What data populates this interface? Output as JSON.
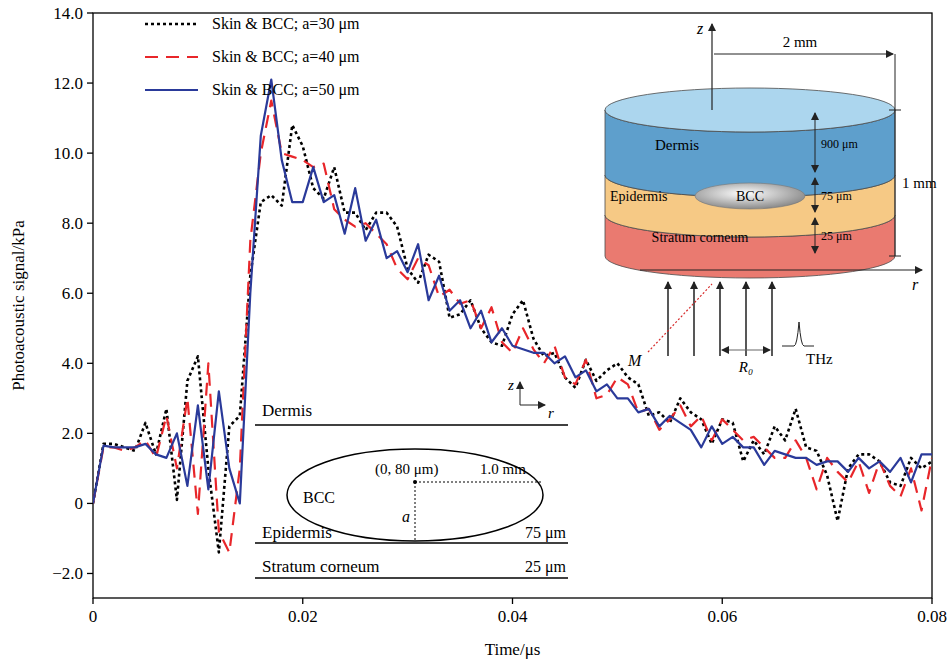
{
  "chart_data": {
    "type": "line",
    "x_label": "Time/μs",
    "y_label": "Photoacoustic signal/kPa",
    "xlim": [
      0,
      0.08
    ],
    "ylim": [
      -2.7,
      14
    ],
    "xticks": [
      0,
      0.02,
      0.04,
      0.06,
      0.08
    ],
    "yticks": [
      {
        "value": -2,
        "label": "−2.0"
      },
      0,
      {
        "value": 2,
        "label": "2.0"
      },
      {
        "value": 4,
        "label": "4.0"
      },
      {
        "value": 6,
        "label": "6.0"
      },
      {
        "value": 8,
        "label": "8.0"
      },
      {
        "value": 10,
        "label": "10.0"
      },
      {
        "value": 12,
        "label": "12.0"
      },
      {
        "value": 14,
        "label": "14.0"
      }
    ],
    "grid": false,
    "legend": "upper left",
    "x": [
      0,
      0.001,
      0.002,
      0.003,
      0.004,
      0.005,
      0.006,
      0.007,
      0.008,
      0.009,
      0.01,
      0.011,
      0.012,
      0.013,
      0.014,
      0.015,
      0.016,
      0.017,
      0.018,
      0.019,
      0.02,
      0.021,
      0.022,
      0.023,
      0.024,
      0.025,
      0.026,
      0.027,
      0.028,
      0.029,
      0.03,
      0.031,
      0.032,
      0.033,
      0.034,
      0.035,
      0.036,
      0.037,
      0.038,
      0.039,
      0.04,
      0.041,
      0.042,
      0.043,
      0.044,
      0.045,
      0.046,
      0.047,
      0.048,
      0.049,
      0.05,
      0.051,
      0.052,
      0.053,
      0.054,
      0.055,
      0.056,
      0.057,
      0.058,
      0.059,
      0.06,
      0.061,
      0.062,
      0.063,
      0.064,
      0.065,
      0.066,
      0.067,
      0.068,
      0.069,
      0.07,
      0.071,
      0.072,
      0.073,
      0.074,
      0.075,
      0.076,
      0.077,
      0.078,
      0.079,
      0.08
    ],
    "series": [
      {
        "name": "Skin & BCC; a=30 μm",
        "color": "#000000",
        "line_style": "dotted",
        "values": [
          0,
          1.7,
          1.7,
          1.6,
          1.5,
          2.3,
          1.4,
          2.7,
          0.1,
          3.5,
          4.2,
          1.0,
          -1.4,
          2.2,
          2.5,
          6.5,
          8.6,
          8.8,
          8.5,
          10.8,
          10.2,
          9.0,
          8.7,
          9.6,
          8.3,
          8.3,
          7.8,
          8.3,
          8.3,
          7.9,
          6.7,
          6.3,
          7.1,
          6.9,
          5.3,
          5.4,
          5.8,
          5.0,
          4.6,
          4.5,
          5.4,
          5.8,
          4.7,
          4.2,
          4.3,
          3.6,
          3.3,
          4.1,
          3.5,
          3.8,
          4.0,
          3.6,
          3.4,
          2.5,
          2.6,
          2.3,
          3.0,
          2.6,
          2.4,
          1.7,
          2.4,
          2.3,
          1.2,
          1.8,
          1.4,
          2.2,
          1.8,
          2.7,
          1.6,
          1.5,
          0.8,
          -0.5,
          1.0,
          1.4,
          1.4,
          1.2,
          0.6,
          0.5,
          1.3,
          1.0,
          1.2
        ]
      },
      {
        "name": "Skin & BCC; a=40 μm",
        "color": "#e8262a",
        "line_style": "dashed",
        "values": [
          0,
          1.6,
          1.6,
          1.5,
          1.6,
          1.8,
          1.3,
          2.5,
          1.0,
          3.0,
          -0.3,
          4.0,
          -0.8,
          -1.4,
          1.0,
          7.5,
          10.0,
          11.5,
          10.0,
          9.9,
          9.8,
          9.6,
          9.7,
          8.4,
          8.1,
          7.9,
          8.0,
          7.7,
          7.4,
          6.7,
          6.4,
          7.0,
          6.8,
          5.9,
          6.1,
          5.7,
          5.8,
          5.0,
          5.6,
          4.6,
          4.3,
          5.0,
          4.4,
          4.0,
          4.5,
          3.6,
          3.4,
          4.1,
          3.0,
          3.1,
          3.6,
          3.4,
          2.6,
          2.7,
          2.1,
          2.4,
          2.8,
          2.2,
          2.5,
          1.8,
          2.4,
          2.1,
          1.8,
          1.9,
          1.6,
          1.3,
          1.3,
          1.8,
          1.3,
          0.4,
          1.3,
          0.9,
          0.6,
          1.2,
          0.3,
          1.2,
          0.5,
          0.2,
          1.0,
          -0.2,
          1.3
        ]
      },
      {
        "name": "Skin & BCC; a=50 μm",
        "color": "#2a3a9a",
        "line_style": "solid",
        "values": [
          0,
          1.65,
          1.6,
          1.6,
          1.6,
          1.7,
          1.4,
          1.3,
          2.0,
          0.5,
          2.8,
          0.4,
          3.2,
          1.0,
          0.0,
          6.0,
          10.5,
          12.1,
          9.8,
          8.6,
          8.6,
          9.6,
          8.6,
          8.8,
          7.7,
          9.0,
          7.5,
          8.1,
          7.0,
          7.2,
          6.6,
          7.4,
          5.8,
          6.5,
          5.5,
          5.8,
          5.0,
          5.5,
          4.6,
          5.0,
          4.5,
          4.4,
          4.3,
          4.3,
          4.0,
          4.2,
          3.6,
          3.8,
          3.2,
          3.4,
          3.0,
          3.0,
          2.6,
          2.7,
          2.2,
          2.5,
          2.3,
          2.1,
          1.6,
          2.2,
          1.7,
          1.9,
          1.6,
          1.6,
          1.1,
          1.5,
          1.4,
          1.3,
          1.3,
          1.1,
          1.2,
          1.2,
          0.9,
          1.3,
          1.0,
          1.2,
          0.9,
          1.3,
          0.6,
          1.4,
          1.4
        ]
      }
    ],
    "annotations": {
      "inset_3d": {
        "z": "z",
        "r": "r",
        "radius": "2 mm",
        "total": "1 mm",
        "dermis": "Dermis",
        "dermis_thickness": "900 μm",
        "epidermis": "Epidermis",
        "epidermis_thickness": "75 μm",
        "bcc": "BCC",
        "stratum": "Stratum corneum",
        "stratum_thickness": "25 μm",
        "m": "M",
        "r0": "R₀",
        "thz": "THz"
      },
      "inset_section": {
        "z": "z",
        "r": "r",
        "dermis": "Dermis",
        "center": "(0, 80 μm)",
        "semi_axis": "1.0 mm",
        "bcc": "BCC",
        "a": "a",
        "epidermis": "Epidermis",
        "epidermis_thickness": "75 μm",
        "stratum": "Stratum corneum",
        "stratum_thickness": "25 μm"
      }
    }
  }
}
